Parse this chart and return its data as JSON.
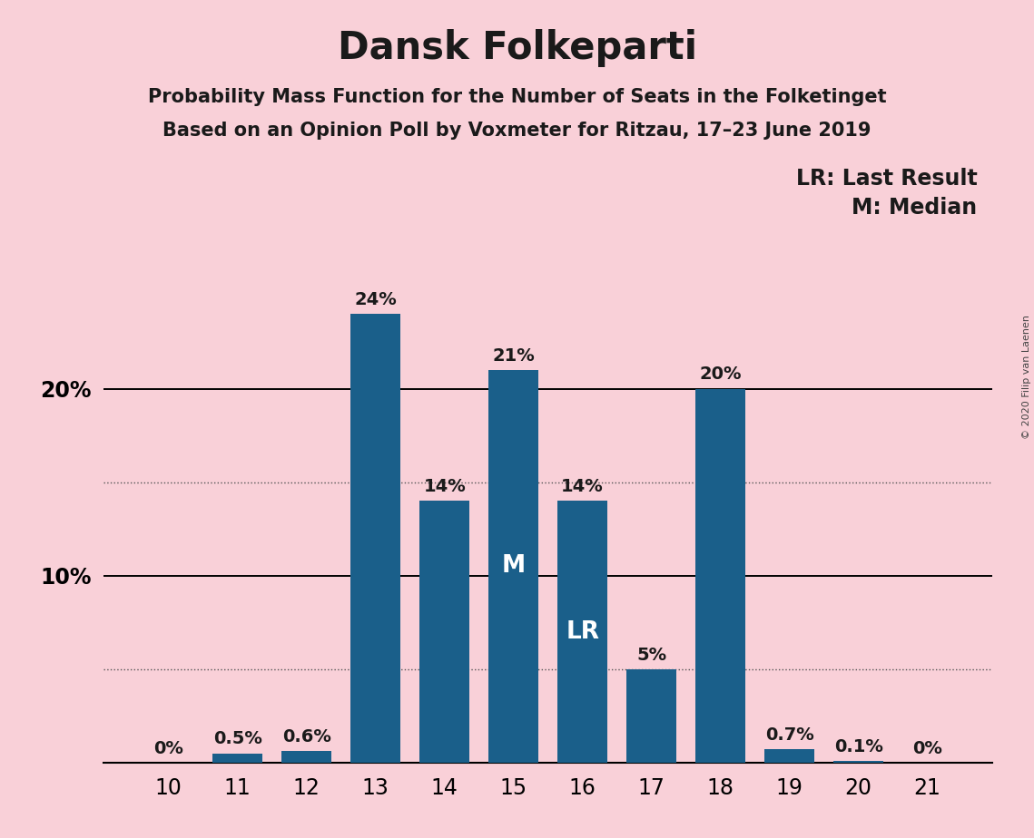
{
  "title": "Dansk Folkeparti",
  "subtitle1": "Probability Mass Function for the Number of Seats in the Folketinget",
  "subtitle2": "Based on an Opinion Poll by Voxmeter for Ritzau, 17–23 June 2019",
  "copyright": "© 2020 Filip van Laenen",
  "categories": [
    10,
    11,
    12,
    13,
    14,
    15,
    16,
    17,
    18,
    19,
    20,
    21
  ],
  "values": [
    0.0,
    0.5,
    0.6,
    24.0,
    14.0,
    21.0,
    14.0,
    5.0,
    20.0,
    0.7,
    0.1,
    0.0
  ],
  "labels": [
    "0%",
    "0.5%",
    "0.6%",
    "24%",
    "14%",
    "21%",
    "14%",
    "5%",
    "20%",
    "0.7%",
    "0.1%",
    "0%"
  ],
  "bar_color": "#1a5f8a",
  "background_color": "#f9d0d8",
  "text_color": "#1a1a1a",
  "bar_label_color_inside": "#ffffff",
  "bar_label_color_outside": "#1a1a1a",
  "median_bar": 15,
  "lr_bar": 16,
  "legend_lr": "LR: Last Result",
  "legend_m": "M: Median",
  "ylim": [
    0,
    26
  ],
  "solid_gridlines": [
    10.0,
    20.0
  ],
  "dotted_gridlines": [
    5.0,
    15.0
  ],
  "title_fontsize": 30,
  "subtitle_fontsize": 15,
  "tick_fontsize": 17,
  "label_fontsize": 14,
  "legend_fontsize": 17,
  "bar_width": 0.72
}
